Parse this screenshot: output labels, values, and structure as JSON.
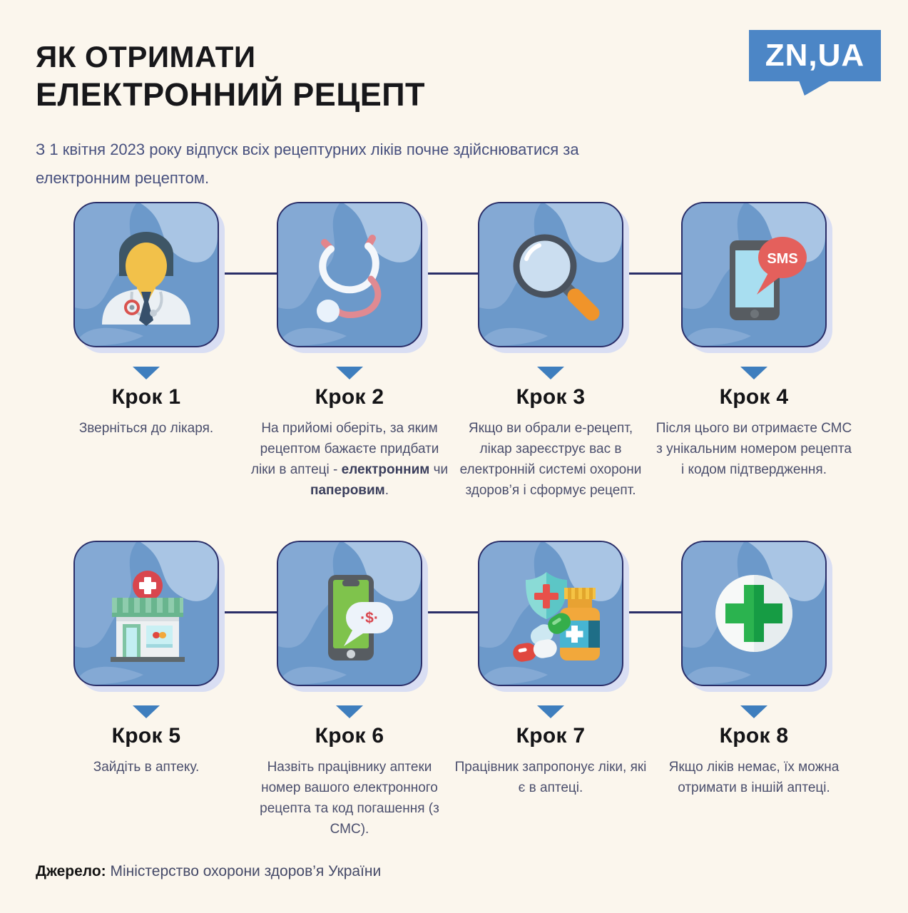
{
  "header": {
    "title_line1": "ЯК ОТРИМАТИ",
    "title_line2": "ЕЛЕКТРОННИЙ РЕЦЕПТ",
    "subtitle": "З 1 квітня 2023 року відпуск всіх рецептурних ліків почне здійснюватися за електронним рецептом.",
    "logo_text": "ZN,UA"
  },
  "steps": [
    {
      "label": "Крок 1",
      "icon": "doctor-icon",
      "text": "Зверніться до лікаря."
    },
    {
      "label": "Крок 2",
      "icon": "stethoscope-icon",
      "segments": [
        {
          "t": "На прийомі оберіть, за яким рецептом бажаєте придбати ліки в аптеці - "
        },
        {
          "t": "електронним",
          "b": true
        },
        {
          "t": " чи "
        },
        {
          "t": "паперовим",
          "b": true
        },
        {
          "t": "."
        }
      ]
    },
    {
      "label": "Крок 3",
      "icon": "magnifier-icon",
      "text": "Якщо ви обрали е-рецепт, лікар зареєструє вас в електронній системі охорони здоров’я і сформує рецепт."
    },
    {
      "label": "Крок 4",
      "icon": "phone-sms-icon",
      "sms_label": "SMS",
      "text": "Після цього ви отримаєте СМС з унікальним номером рецепта і кодом підтвердження."
    },
    {
      "label": "Крок 5",
      "icon": "pharmacy-store-icon",
      "text": "Зайдіть в аптеку."
    },
    {
      "label": "Крок 6",
      "icon": "phone-payment-icon",
      "bubble_label": "·$·",
      "text": "Назвіть працівнику аптеки номер вашого електронного рецепта та код погашення (з СМС)."
    },
    {
      "label": "Крок 7",
      "icon": "medicines-icon",
      "text": "Працівник запропонує ліки, які є в аптеці."
    },
    {
      "label": "Крок 8",
      "icon": "green-cross-icon",
      "text": "Якщо ліків немає, їх можна отримати в іншій аптеці."
    }
  ],
  "footer": {
    "source_label": "Джерело:",
    "source_text": "Міністерство охорони здоров’я України"
  },
  "colors": {
    "background": "#FBF6ED",
    "brand_blue": "#4C86C6",
    "card_blue": "#6C99CA",
    "card_swirl_light": "#84A9D4",
    "card_swirl_lighter": "#A9C5E4",
    "card_border_navy": "#2A2E68",
    "card_shadow_lavender": "#D9DEF3",
    "arrow_blue": "#3E7EBE",
    "heading_text": "#141417",
    "body_text": "#4B4F6D",
    "subtitle_text": "#47507E"
  }
}
